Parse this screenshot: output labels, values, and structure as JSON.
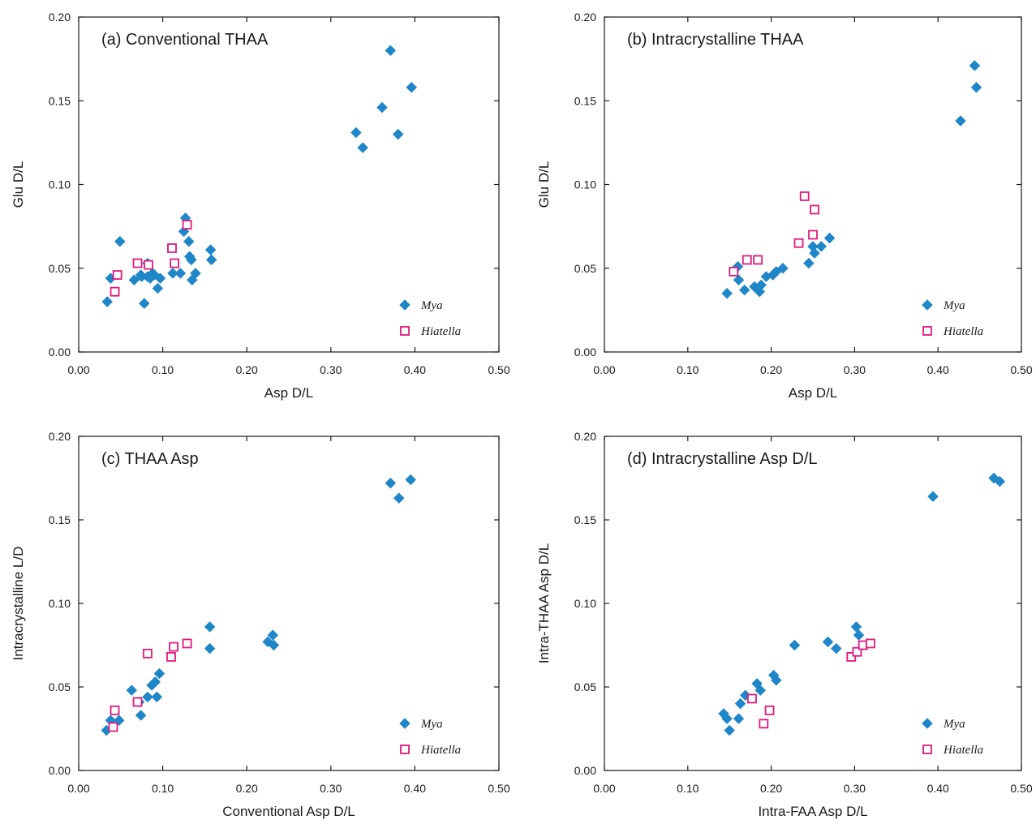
{
  "colors": {
    "mya": "#1f86c8",
    "hiatella": "#e0197d",
    "axis": "#1a1a1a"
  },
  "chart_data": [
    {
      "type": "scatter",
      "title": "(a) Conventional THAA",
      "xlabel": "Asp D/L",
      "ylabel": "Glu D/L",
      "xlim": [
        0,
        0.5
      ],
      "ylim": [
        0,
        0.2
      ],
      "xticks": [
        "0.00",
        "0.10",
        "0.20",
        "0.30",
        "0.40",
        "0.50"
      ],
      "yticks": [
        "0.00",
        "0.05",
        "0.10",
        "0.15",
        "0.20"
      ],
      "legend": [
        "Mya",
        "Hiatella"
      ],
      "legend_position": "bottom-right",
      "series": [
        {
          "name": "Mya",
          "marker": "filled-diamond",
          "color": "#1f86c8",
          "points": [
            [
              0.034,
              0.03
            ],
            [
              0.038,
              0.044
            ],
            [
              0.049,
              0.066
            ],
            [
              0.066,
              0.043
            ],
            [
              0.074,
              0.046
            ],
            [
              0.078,
              0.029
            ],
            [
              0.082,
              0.045
            ],
            [
              0.085,
              0.044
            ],
            [
              0.088,
              0.047
            ],
            [
              0.09,
              0.046
            ],
            [
              0.094,
              0.038
            ],
            [
              0.097,
              0.044
            ],
            [
              0.112,
              0.047
            ],
            [
              0.121,
              0.047
            ],
            [
              0.125,
              0.072
            ],
            [
              0.127,
              0.08
            ],
            [
              0.131,
              0.066
            ],
            [
              0.132,
              0.057
            ],
            [
              0.134,
              0.055
            ],
            [
              0.135,
              0.043
            ],
            [
              0.139,
              0.047
            ],
            [
              0.157,
              0.061
            ],
            [
              0.158,
              0.055
            ],
            [
              0.075,
              0.045
            ],
            [
              0.082,
              0.053
            ],
            [
              0.33,
              0.131
            ],
            [
              0.338,
              0.122
            ],
            [
              0.361,
              0.146
            ],
            [
              0.371,
              0.18
            ],
            [
              0.38,
              0.13
            ],
            [
              0.396,
              0.158
            ]
          ]
        },
        {
          "name": "Hiatella",
          "marker": "open-square",
          "color": "#e0197d",
          "points": [
            [
              0.043,
              0.036
            ],
            [
              0.046,
              0.046
            ],
            [
              0.07,
              0.053
            ],
            [
              0.083,
              0.052
            ],
            [
              0.111,
              0.062
            ],
            [
              0.114,
              0.053
            ],
            [
              0.129,
              0.076
            ]
          ]
        }
      ]
    },
    {
      "type": "scatter",
      "title": "(b) Intracrystalline THAA",
      "xlabel": "Asp D/L",
      "ylabel": "Glu D/L",
      "xlim": [
        0,
        0.5
      ],
      "ylim": [
        0,
        0.2
      ],
      "xticks": [
        "0.00",
        "0.10",
        "0.20",
        "0.30",
        "0.40",
        "0.50"
      ],
      "yticks": [
        "0.00",
        "0.05",
        "0.10",
        "0.15",
        "0.20"
      ],
      "legend": [
        "Mya",
        "Hiatella"
      ],
      "legend_position": "bottom-right",
      "series": [
        {
          "name": "Mya",
          "marker": "filled-diamond",
          "color": "#1f86c8",
          "points": [
            [
              0.147,
              0.035
            ],
            [
              0.16,
              0.051
            ],
            [
              0.161,
              0.043
            ],
            [
              0.168,
              0.037
            ],
            [
              0.18,
              0.039
            ],
            [
              0.186,
              0.036
            ],
            [
              0.188,
              0.04
            ],
            [
              0.194,
              0.045
            ],
            [
              0.202,
              0.046
            ],
            [
              0.206,
              0.048
            ],
            [
              0.214,
              0.05
            ],
            [
              0.245,
              0.053
            ],
            [
              0.25,
              0.063
            ],
            [
              0.252,
              0.059
            ],
            [
              0.26,
              0.063
            ],
            [
              0.27,
              0.068
            ],
            [
              0.427,
              0.138
            ],
            [
              0.444,
              0.171
            ],
            [
              0.446,
              0.158
            ]
          ]
        },
        {
          "name": "Hiatella",
          "marker": "open-square",
          "color": "#e0197d",
          "points": [
            [
              0.155,
              0.048
            ],
            [
              0.171,
              0.055
            ],
            [
              0.184,
              0.055
            ],
            [
              0.233,
              0.065
            ],
            [
              0.24,
              0.093
            ],
            [
              0.25,
              0.07
            ],
            [
              0.252,
              0.085
            ]
          ]
        }
      ]
    },
    {
      "type": "scatter",
      "title": "(c) THAA Asp",
      "xlabel": "Conventional Asp D/L",
      "ylabel": "Intracrystalline L/D",
      "xlim": [
        0,
        0.5
      ],
      "ylim": [
        0,
        0.2
      ],
      "xticks": [
        "0.00",
        "0.10",
        "0.20",
        "0.30",
        "0.40",
        "0.50"
      ],
      "yticks": [
        "0.00",
        "0.05",
        "0.10",
        "0.15",
        "0.20"
      ],
      "legend": [
        "Mya",
        "Hiatella"
      ],
      "legend_position": "bottom-right",
      "series": [
        {
          "name": "Mya",
          "marker": "filled-diamond",
          "color": "#1f86c8",
          "points": [
            [
              0.033,
              0.024
            ],
            [
              0.038,
              0.03
            ],
            [
              0.048,
              0.03
            ],
            [
              0.063,
              0.048
            ],
            [
              0.072,
              0.041
            ],
            [
              0.074,
              0.033
            ],
            [
              0.082,
              0.044
            ],
            [
              0.087,
              0.051
            ],
            [
              0.091,
              0.053
            ],
            [
              0.093,
              0.044
            ],
            [
              0.096,
              0.058
            ],
            [
              0.225,
              0.077
            ],
            [
              0.231,
              0.081
            ],
            [
              0.232,
              0.075
            ],
            [
              0.156,
              0.086
            ],
            [
              0.156,
              0.073
            ],
            [
              0.371,
              0.172
            ],
            [
              0.381,
              0.163
            ],
            [
              0.395,
              0.174
            ]
          ]
        },
        {
          "name": "Hiatella",
          "marker": "open-square",
          "color": "#e0197d",
          "points": [
            [
              0.041,
              0.026
            ],
            [
              0.043,
              0.036
            ],
            [
              0.07,
              0.041
            ],
            [
              0.082,
              0.07
            ],
            [
              0.11,
              0.068
            ],
            [
              0.113,
              0.074
            ],
            [
              0.129,
              0.076
            ]
          ]
        }
      ]
    },
    {
      "type": "scatter",
      "title": "(d) Intracrystalline Asp D/L",
      "xlabel": "Intra-FAA Asp D/L",
      "ylabel": "Intra-THAA Asp D/L",
      "xlim": [
        0,
        0.5
      ],
      "ylim": [
        0,
        0.2
      ],
      "xticks": [
        "0.00",
        "0.10",
        "0.20",
        "0.30",
        "0.40",
        "0.50"
      ],
      "yticks": [
        "0.00",
        "0.05",
        "0.10",
        "0.15",
        "0.20"
      ],
      "legend": [
        "Mya",
        "Hiatella"
      ],
      "legend_position": "bottom-right",
      "series": [
        {
          "name": "Mya",
          "marker": "filled-diamond",
          "color": "#1f86c8",
          "points": [
            [
              0.143,
              0.034
            ],
            [
              0.147,
              0.031
            ],
            [
              0.15,
              0.024
            ],
            [
              0.161,
              0.031
            ],
            [
              0.163,
              0.04
            ],
            [
              0.169,
              0.045
            ],
            [
              0.183,
              0.052
            ],
            [
              0.187,
              0.048
            ],
            [
              0.203,
              0.057
            ],
            [
              0.206,
              0.054
            ],
            [
              0.228,
              0.075
            ],
            [
              0.268,
              0.077
            ],
            [
              0.278,
              0.073
            ],
            [
              0.302,
              0.086
            ],
            [
              0.305,
              0.081
            ],
            [
              0.394,
              0.164
            ],
            [
              0.467,
              0.175
            ],
            [
              0.474,
              0.173
            ]
          ]
        },
        {
          "name": "Hiatella",
          "marker": "open-square",
          "color": "#e0197d",
          "points": [
            [
              0.177,
              0.043
            ],
            [
              0.191,
              0.028
            ],
            [
              0.198,
              0.036
            ],
            [
              0.296,
              0.068
            ],
            [
              0.303,
              0.071
            ],
            [
              0.31,
              0.075
            ],
            [
              0.319,
              0.076
            ]
          ]
        }
      ]
    }
  ]
}
